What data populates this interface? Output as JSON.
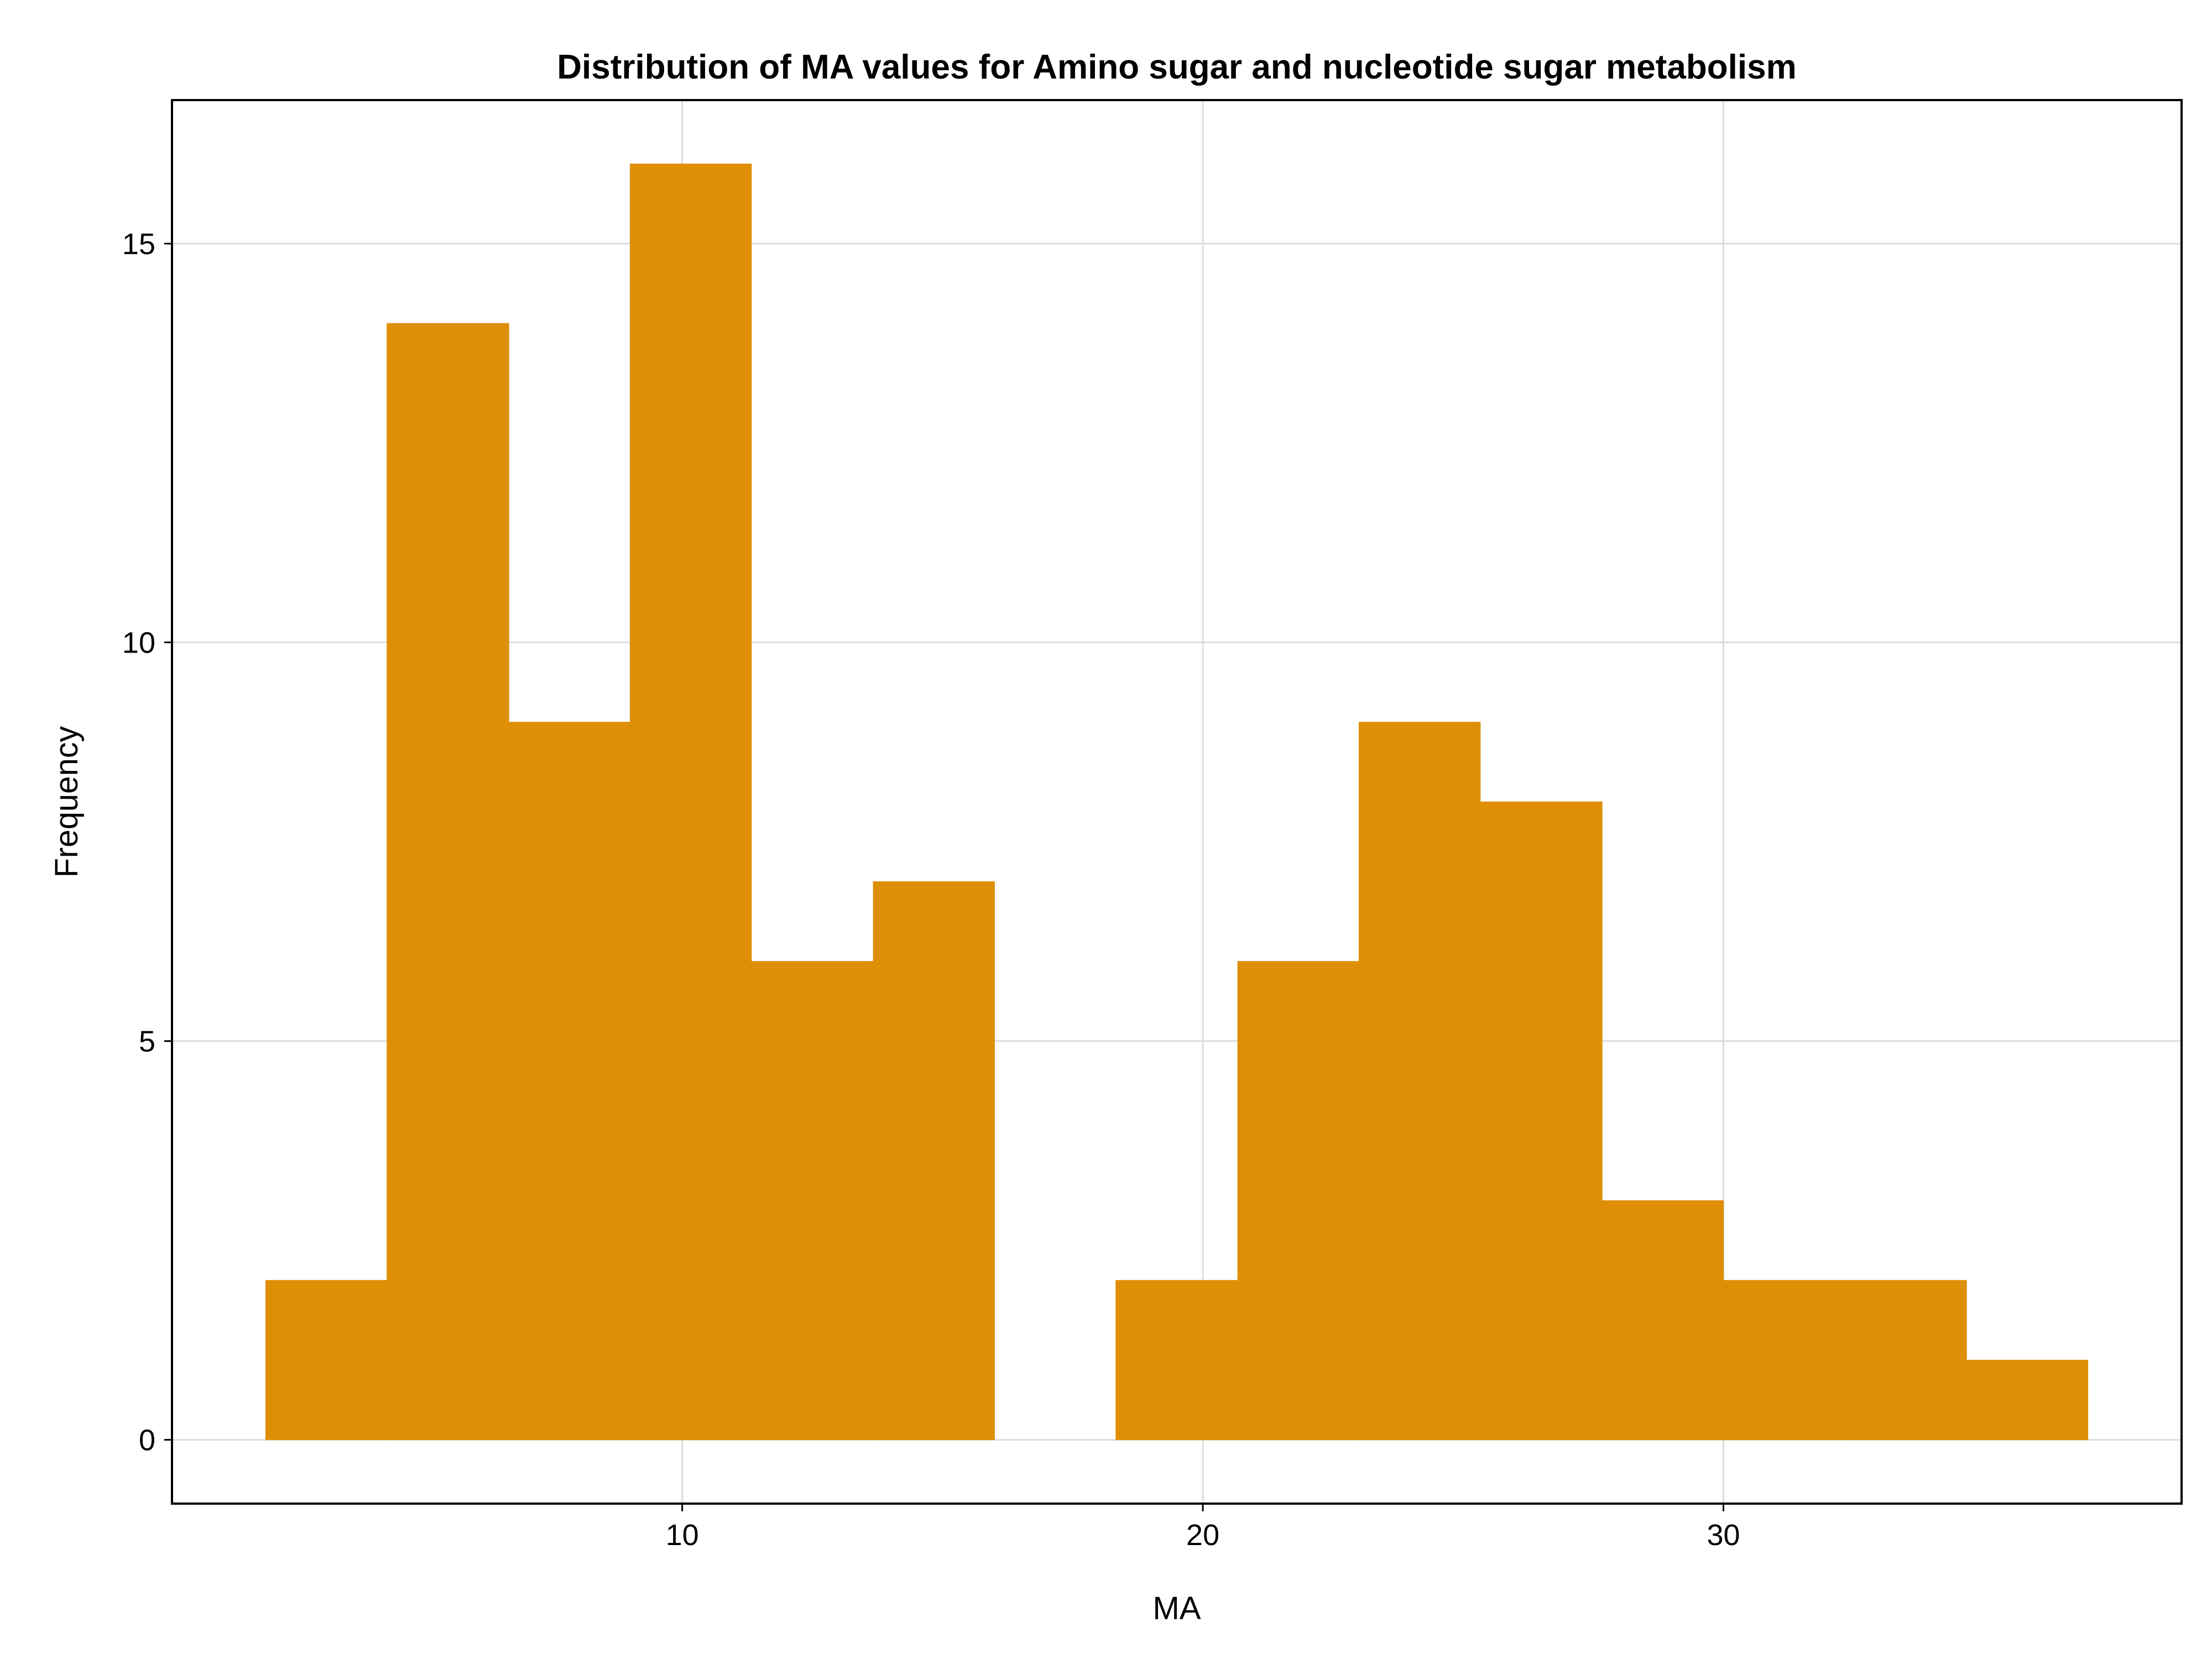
{
  "chart_data": {
    "type": "bar",
    "title": "Distribution of MA values for Amino sugar and nucleotide sugar metabolism",
    "xlabel": "MA",
    "ylabel": "Frequency",
    "xlim": [
      0.2,
      38.8
    ],
    "ylim": [
      -0.8,
      16.8
    ],
    "xticks": [
      10,
      20,
      30
    ],
    "yticks": [
      0,
      5,
      10,
      15
    ],
    "grid": true,
    "bar_color": "#de8f05",
    "bins": [
      {
        "x0": 2.0,
        "x1": 4.33,
        "count": 2
      },
      {
        "x0": 4.33,
        "x1": 6.67,
        "count": 14
      },
      {
        "x0": 6.67,
        "x1": 9.0,
        "count": 9
      },
      {
        "x0": 9.0,
        "x1": 11.33,
        "count": 16
      },
      {
        "x0": 11.33,
        "x1": 13.67,
        "count": 6
      },
      {
        "x0": 13.67,
        "x1": 16.0,
        "count": 7
      },
      {
        "x0": 16.0,
        "x1": 18.33,
        "count": 0
      },
      {
        "x0": 18.33,
        "x1": 20.67,
        "count": 2
      },
      {
        "x0": 20.67,
        "x1": 23.0,
        "count": 6
      },
      {
        "x0": 23.0,
        "x1": 25.33,
        "count": 9
      },
      {
        "x0": 25.33,
        "x1": 27.67,
        "count": 8
      },
      {
        "x0": 27.67,
        "x1": 30.0,
        "count": 3
      },
      {
        "x0": 30.0,
        "x1": 32.33,
        "count": 2
      },
      {
        "x0": 32.33,
        "x1": 34.67,
        "count": 2
      },
      {
        "x0": 34.67,
        "x1": 37.0,
        "count": 1
      }
    ]
  }
}
